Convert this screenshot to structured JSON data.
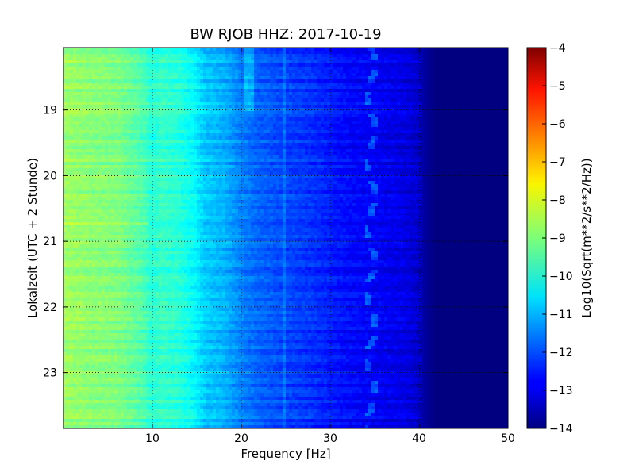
{
  "chart_data": {
    "type": "heatmap",
    "title": "BW RJOB HHZ: 2017-10-19",
    "xlabel": "Frequency [Hz]",
    "ylabel": "Lokalzeit (UTC + 2 Stunde)",
    "xlim": [
      0,
      50
    ],
    "ylim": [
      18.05,
      23.85
    ],
    "y_inverted": true,
    "x_ticks": [
      10,
      20,
      30,
      40,
      50
    ],
    "y_ticks": [
      19,
      20,
      21,
      22,
      23
    ],
    "grid": true,
    "grid_style": "dotted",
    "colormap": "jet",
    "colorbar": {
      "label": "Log10(Sqrt(m**2/s**2/Hz))",
      "range": [
        -14,
        -4
      ],
      "ticks": [
        -4,
        -5,
        -6,
        -7,
        -8,
        -9,
        -10,
        -11,
        -12,
        -13,
        -14
      ]
    },
    "spectral_profile": {
      "frequency_hz": [
        0,
        3,
        6,
        9,
        10,
        11,
        12,
        13,
        14,
        15,
        16,
        18,
        20,
        22,
        25,
        28,
        30,
        32,
        34,
        36,
        38,
        39,
        40,
        40.5,
        41,
        42,
        45,
        50
      ],
      "level": [
        -8.7,
        -8.9,
        -9.0,
        -9.5,
        -9.9,
        -9.7,
        -9.8,
        -9.9,
        -10.1,
        -10.4,
        -10.8,
        -11.0,
        -11.5,
        -11.8,
        -12.1,
        -12.3,
        -12.5,
        -12.7,
        -12.8,
        -12.9,
        -13.0,
        -13.1,
        -13.3,
        -13.6,
        -13.8,
        -14.0,
        -14.0,
        -14.0
      ]
    },
    "annotations": [
      {
        "name": "hum-band-35hz",
        "frequency_hz": 34.6,
        "description_label": ""
      },
      {
        "name": "tone-21hz",
        "frequency_hz": 21
      },
      {
        "name": "tone-25hz",
        "frequency_hz": 24.8
      }
    ]
  }
}
